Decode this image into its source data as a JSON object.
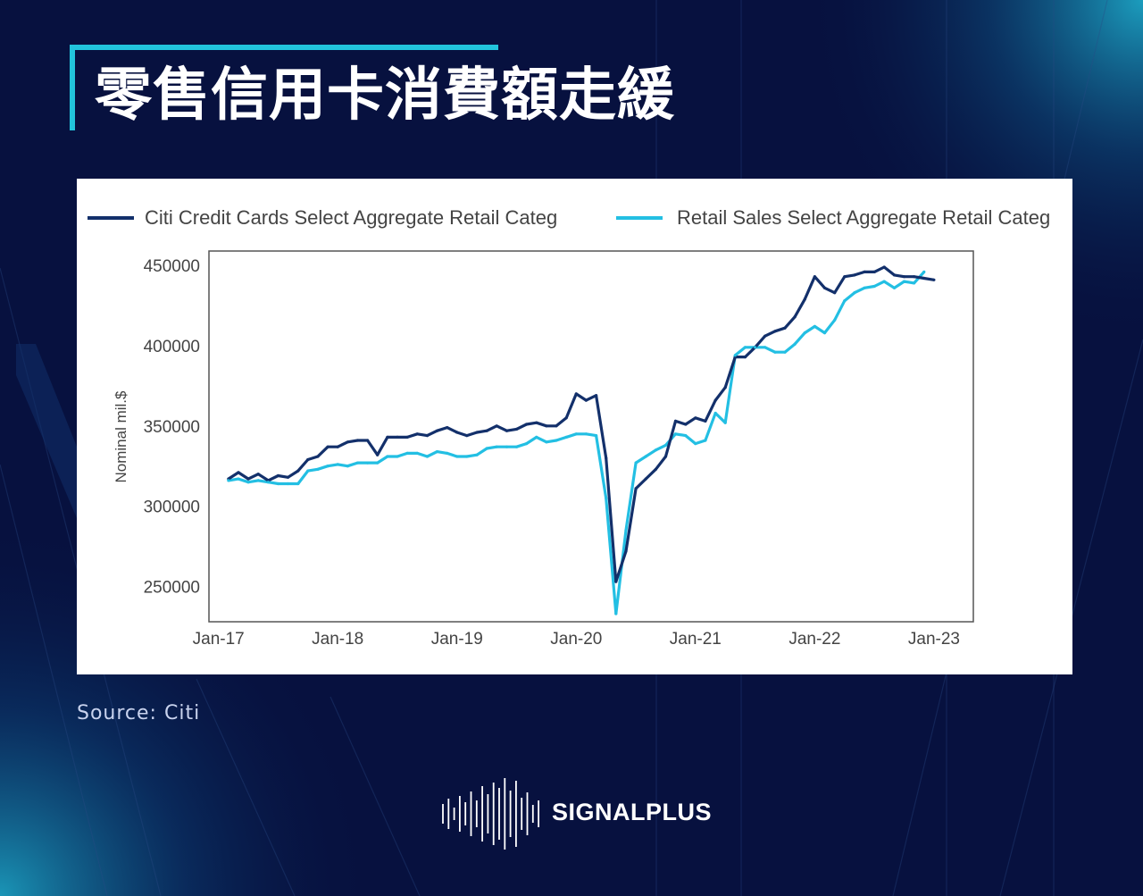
{
  "title": "零售信用卡消費額走緩",
  "source": "Source: Citi",
  "brand": "SIGNALPLUS",
  "colors": {
    "background": "#07113f",
    "accent": "#22c4dc",
    "series_citi": "#13306b",
    "series_retail": "#23bfe3"
  },
  "chart_data": {
    "type": "line",
    "ylabel": "Nominal mil.$",
    "ylim": [
      228000,
      459000
    ],
    "yticks": [
      250000,
      300000,
      350000,
      400000,
      450000
    ],
    "ytick_labels": [
      "250000",
      "300000",
      "350000",
      "400000",
      "450000"
    ],
    "xlim": [
      2016.92,
      2023.33
    ],
    "xticks": [
      2017,
      2018,
      2019,
      2020,
      2021,
      2022,
      2023
    ],
    "xtick_labels": [
      "Jan-17",
      "Jan-18",
      "Jan-19",
      "Jan-20",
      "Jan-21",
      "Jan-22",
      "Jan-23"
    ],
    "legend_position": "top, outside plot",
    "series": [
      {
        "name": "Citi Credit Cards Select Aggregate Retail Categ",
        "points": [
          [
            2017.083,
            317000
          ],
          [
            2017.167,
            321000
          ],
          [
            2017.25,
            317000
          ],
          [
            2017.333,
            320000
          ],
          [
            2017.417,
            316000
          ],
          [
            2017.5,
            319000
          ],
          [
            2017.583,
            318000
          ],
          [
            2017.667,
            322000
          ],
          [
            2017.75,
            329000
          ],
          [
            2017.833,
            331000
          ],
          [
            2017.917,
            337000
          ],
          [
            2018.0,
            337000
          ],
          [
            2018.083,
            340000
          ],
          [
            2018.167,
            341000
          ],
          [
            2018.25,
            341000
          ],
          [
            2018.333,
            332000
          ],
          [
            2018.417,
            343000
          ],
          [
            2018.5,
            343000
          ],
          [
            2018.583,
            343000
          ],
          [
            2018.667,
            345000
          ],
          [
            2018.75,
            344000
          ],
          [
            2018.833,
            347000
          ],
          [
            2018.917,
            349000
          ],
          [
            2019.0,
            346000
          ],
          [
            2019.083,
            344000
          ],
          [
            2019.167,
            346000
          ],
          [
            2019.25,
            347000
          ],
          [
            2019.333,
            350000
          ],
          [
            2019.417,
            347000
          ],
          [
            2019.5,
            348000
          ],
          [
            2019.583,
            351000
          ],
          [
            2019.667,
            352000
          ],
          [
            2019.75,
            350000
          ],
          [
            2019.833,
            350000
          ],
          [
            2019.917,
            355000
          ],
          [
            2020.0,
            370000
          ],
          [
            2020.083,
            366000
          ],
          [
            2020.167,
            369000
          ],
          [
            2020.25,
            330000
          ],
          [
            2020.333,
            253000
          ],
          [
            2020.417,
            272000
          ],
          [
            2020.5,
            311000
          ],
          [
            2020.583,
            317000
          ],
          [
            2020.667,
            323000
          ],
          [
            2020.75,
            331000
          ],
          [
            2020.833,
            353000
          ],
          [
            2020.917,
            351000
          ],
          [
            2021.0,
            355000
          ],
          [
            2021.083,
            353000
          ],
          [
            2021.167,
            366000
          ],
          [
            2021.25,
            374000
          ],
          [
            2021.333,
            393000
          ],
          [
            2021.417,
            393000
          ],
          [
            2021.5,
            399000
          ],
          [
            2021.583,
            406000
          ],
          [
            2021.667,
            409000
          ],
          [
            2021.75,
            411000
          ],
          [
            2021.833,
            418000
          ],
          [
            2021.917,
            429000
          ],
          [
            2022.0,
            443000
          ],
          [
            2022.083,
            436000
          ],
          [
            2022.167,
            433000
          ],
          [
            2022.25,
            443000
          ],
          [
            2022.333,
            444000
          ],
          [
            2022.417,
            446000
          ],
          [
            2022.5,
            446000
          ],
          [
            2022.583,
            449000
          ],
          [
            2022.667,
            444000
          ],
          [
            2022.75,
            443000
          ],
          [
            2022.833,
            443000
          ],
          [
            2022.917,
            442000
          ],
          [
            2023.0,
            441000
          ]
        ]
      },
      {
        "name": "Retail Sales Select Aggregate Retail Categ",
        "points": [
          [
            2017.083,
            316000
          ],
          [
            2017.167,
            317000
          ],
          [
            2017.25,
            315000
          ],
          [
            2017.333,
            316000
          ],
          [
            2017.417,
            315000
          ],
          [
            2017.5,
            314000
          ],
          [
            2017.583,
            314000
          ],
          [
            2017.667,
            314000
          ],
          [
            2017.75,
            322000
          ],
          [
            2017.833,
            323000
          ],
          [
            2017.917,
            325000
          ],
          [
            2018.0,
            326000
          ],
          [
            2018.083,
            325000
          ],
          [
            2018.167,
            327000
          ],
          [
            2018.25,
            327000
          ],
          [
            2018.333,
            327000
          ],
          [
            2018.417,
            331000
          ],
          [
            2018.5,
            331000
          ],
          [
            2018.583,
            333000
          ],
          [
            2018.667,
            333000
          ],
          [
            2018.75,
            331000
          ],
          [
            2018.833,
            334000
          ],
          [
            2018.917,
            333000
          ],
          [
            2019.0,
            331000
          ],
          [
            2019.083,
            331000
          ],
          [
            2019.167,
            332000
          ],
          [
            2019.25,
            336000
          ],
          [
            2019.333,
            337000
          ],
          [
            2019.417,
            337000
          ],
          [
            2019.5,
            337000
          ],
          [
            2019.583,
            339000
          ],
          [
            2019.667,
            343000
          ],
          [
            2019.75,
            340000
          ],
          [
            2019.833,
            341000
          ],
          [
            2019.917,
            343000
          ],
          [
            2020.0,
            345000
          ],
          [
            2020.083,
            345000
          ],
          [
            2020.167,
            344000
          ],
          [
            2020.25,
            305000
          ],
          [
            2020.333,
            233000
          ],
          [
            2020.417,
            285000
          ],
          [
            2020.5,
            327000
          ],
          [
            2020.583,
            331000
          ],
          [
            2020.667,
            335000
          ],
          [
            2020.75,
            338000
          ],
          [
            2020.833,
            345000
          ],
          [
            2020.917,
            344000
          ],
          [
            2021.0,
            339000
          ],
          [
            2021.083,
            341000
          ],
          [
            2021.167,
            358000
          ],
          [
            2021.25,
            352000
          ],
          [
            2021.333,
            394000
          ],
          [
            2021.417,
            399000
          ],
          [
            2021.5,
            399000
          ],
          [
            2021.583,
            399000
          ],
          [
            2021.667,
            396000
          ],
          [
            2021.75,
            396000
          ],
          [
            2021.833,
            401000
          ],
          [
            2021.917,
            408000
          ],
          [
            2022.0,
            412000
          ],
          [
            2022.083,
            408000
          ],
          [
            2022.167,
            416000
          ],
          [
            2022.25,
            428000
          ],
          [
            2022.333,
            433000
          ],
          [
            2022.417,
            436000
          ],
          [
            2022.5,
            437000
          ],
          [
            2022.583,
            440000
          ],
          [
            2022.667,
            436000
          ],
          [
            2022.75,
            440000
          ],
          [
            2022.833,
            439000
          ],
          [
            2022.917,
            446000
          ]
        ]
      }
    ]
  }
}
